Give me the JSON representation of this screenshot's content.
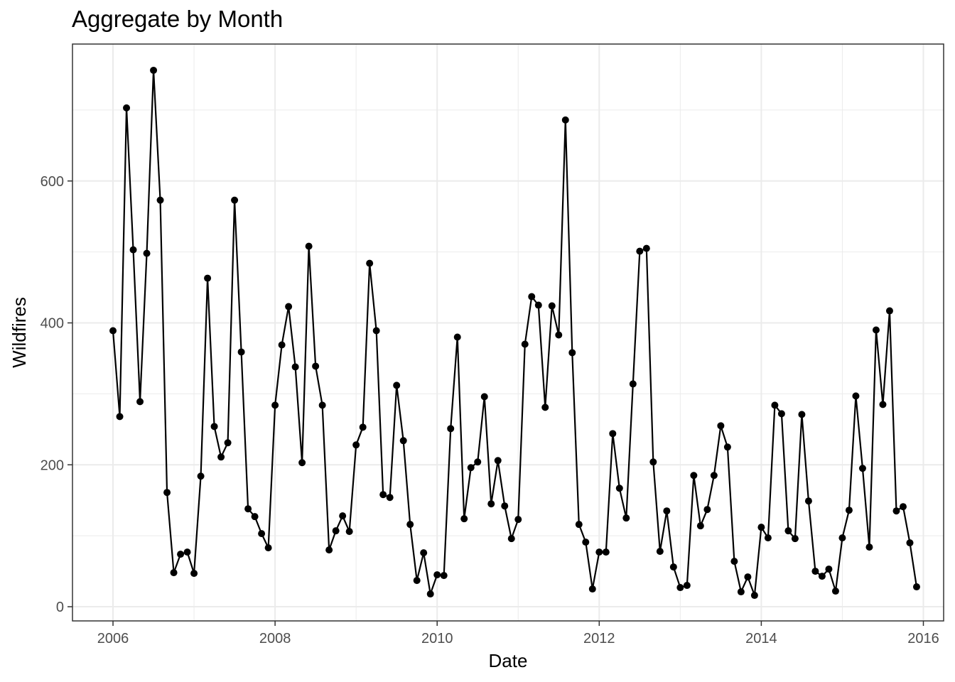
{
  "chart_data": {
    "type": "line",
    "title": "Aggregate by Month",
    "xlabel": "Date",
    "ylabel": "Wildfires",
    "x_start": "2006-01",
    "x_frequency": "monthly",
    "x_ticks": [
      "2006",
      "2008",
      "2010",
      "2012",
      "2014",
      "2016"
    ],
    "y_ticks": [
      0,
      200,
      400,
      600
    ],
    "xlim": [
      "2005-07",
      "2016-04"
    ],
    "ylim": [
      -20,
      793
    ],
    "grid": true,
    "markers": true,
    "line_color": "#000000",
    "values": [
      389,
      268,
      703,
      503,
      289,
      498,
      756,
      573,
      161,
      48,
      74,
      77,
      47,
      184,
      463,
      254,
      211,
      231,
      573,
      359,
      138,
      127,
      103,
      83,
      284,
      369,
      423,
      338,
      203,
      508,
      339,
      284,
      80,
      107,
      128,
      106,
      228,
      253,
      484,
      389,
      158,
      154,
      312,
      234,
      116,
      37,
      76,
      18,
      45,
      44,
      251,
      380,
      124,
      196,
      204,
      296,
      145,
      206,
      142,
      96,
      123,
      370,
      437,
      425,
      281,
      424,
      383,
      686,
      358,
      116,
      91,
      25,
      77,
      77,
      244,
      167,
      125,
      314,
      501,
      505,
      204,
      78,
      135,
      56,
      27,
      30,
      185,
      114,
      137,
      185,
      255,
      225,
      64,
      21,
      42,
      16,
      112,
      97,
      284,
      272,
      107,
      96,
      271,
      149,
      50,
      43,
      53,
      22,
      97,
      136,
      297,
      195,
      84,
      390,
      285,
      417,
      135,
      141,
      90,
      28
    ]
  }
}
